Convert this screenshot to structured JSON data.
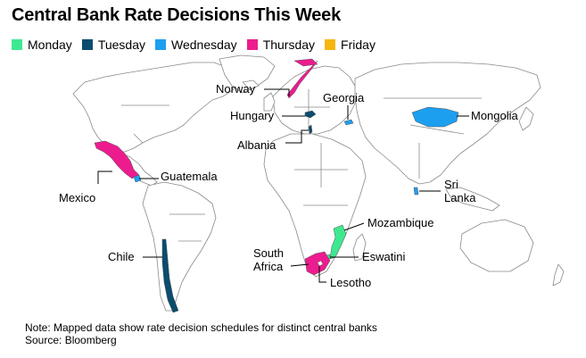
{
  "title": "Central Bank Rate Decisions This Week",
  "legend": [
    {
      "label": "Monday",
      "color": "#3ee891"
    },
    {
      "label": "Tuesday",
      "color": "#0a4d6e"
    },
    {
      "label": "Wednesday",
      "color": "#1d9ff0"
    },
    {
      "label": "Thursday",
      "color": "#ec1c8f"
    },
    {
      "label": "Friday",
      "color": "#f5b70f"
    }
  ],
  "countries": {
    "norway": "Norway",
    "hungary": "Hungary",
    "albania": "Albania",
    "georgia": "Georgia",
    "mongolia": "Mongolia",
    "mexico": "Mexico",
    "guatemala": "Guatemala",
    "sri_lanka": "Sri\nLanka",
    "mozambique": "Mozambique",
    "eswatini": "Eswatini",
    "south_africa": "South\nAfrica",
    "lesotho": "Lesotho",
    "chile": "Chile"
  },
  "note": "Note: Mapped data show rate decision schedules for distinct central banks",
  "source": "Source: Bloomberg"
}
